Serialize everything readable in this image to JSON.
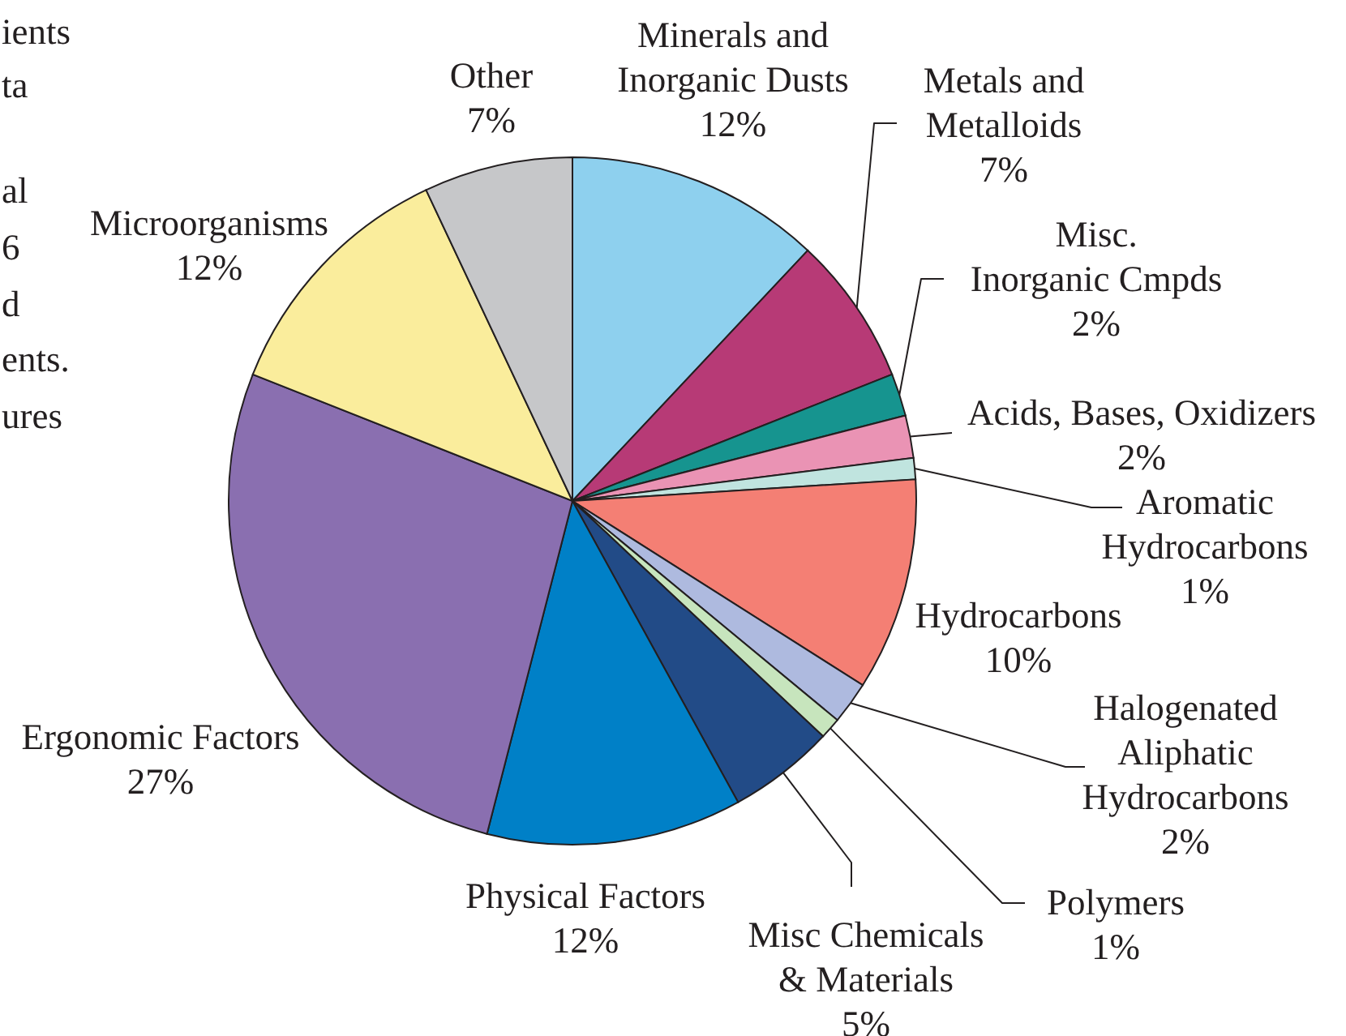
{
  "chart_data": {
    "type": "pie",
    "categories": [
      "Minerals and Inorganic Dusts",
      "Metals and Metalloids",
      "Misc. Inorganic Cmpds",
      "Acids, Bases, Oxidizers",
      "Aromatic Hydrocarbons",
      "Hydrocarbons",
      "Halogenated Aliphatic Hydrocarbons",
      "Polymers",
      "Misc Chemicals & Materials",
      "Physical Factors",
      "Ergonomic Factors",
      "Microorganisms",
      "Other"
    ],
    "values": [
      12,
      7,
      2,
      2,
      1,
      10,
      2,
      1,
      5,
      12,
      27,
      12,
      7
    ],
    "value_labels": [
      "12%",
      "7%",
      "2%",
      "2%",
      "1%",
      "10%",
      "2%",
      "1%",
      "5%",
      "12%",
      "27%",
      "12%",
      "7%"
    ],
    "colors": [
      "#8ed0ee",
      "#b73a76",
      "#16948f",
      "#ea93b4",
      "#c0e4df",
      "#f47f74",
      "#aebadf",
      "#c7e5bd",
      "#224b87",
      "#0080c7",
      "#8a6fb0",
      "#faed9c",
      "#c6c7c9"
    ],
    "annotations": [
      "ients",
      "ta",
      "al",
      "6",
      "d",
      "ents.",
      "ures"
    ]
  }
}
